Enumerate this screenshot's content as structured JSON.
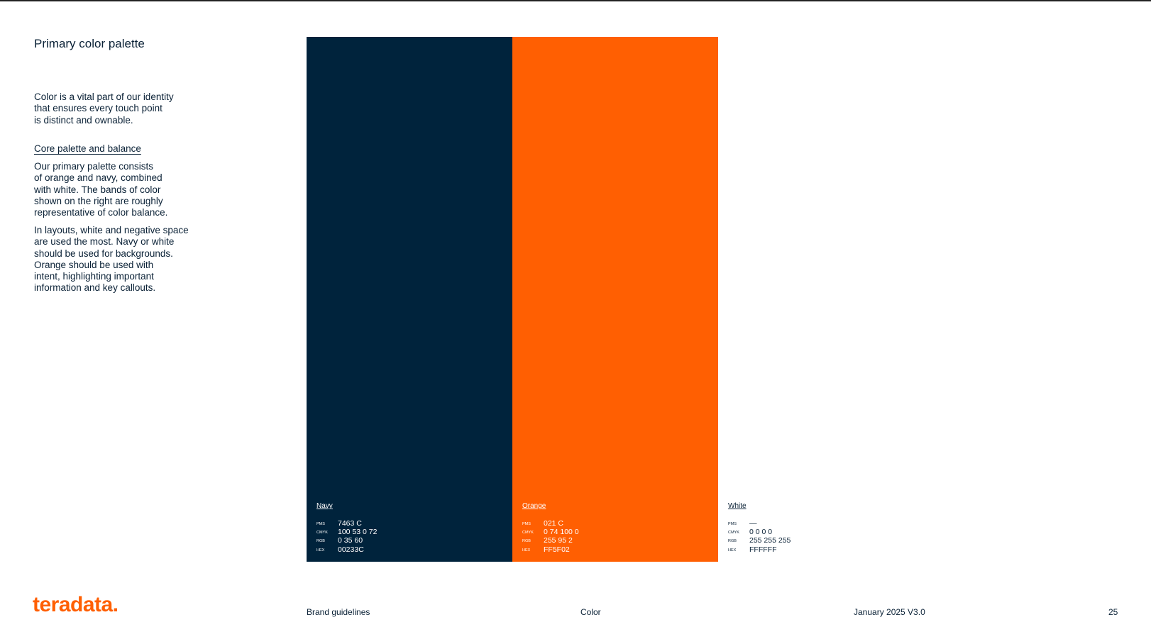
{
  "title": "Primary color palette",
  "intro": [
    "Color is a vital part of our identity",
    "that ensures every touch point",
    "is distinct and ownable."
  ],
  "subheading": "Core palette and balance",
  "paragraphs": [
    [
      "Our primary palette consists",
      "of orange and navy, combined",
      "with white. The bands of color",
      "shown on the right are roughly",
      "representative of color balance."
    ],
    [
      "In layouts, white and negative space",
      "are used the most. Navy or white",
      "should be used for backgrounds.",
      "Orange should be used with",
      "intent, highlighting important",
      "information and key callouts."
    ]
  ],
  "spec_labels": [
    "PMS",
    "CMYK",
    "RGB",
    "HEX"
  ],
  "swatches": [
    {
      "name": "Navy",
      "specs": [
        "7463 C",
        "100 53 0 72",
        "0 35 60",
        "00233C"
      ]
    },
    {
      "name": "Orange",
      "specs": [
        "021 C",
        "0 74 100 0",
        "255 95 2",
        "FF5F02"
      ]
    },
    {
      "name": "White",
      "specs": [
        "—",
        "0 0 0 0",
        "255 255 255",
        "FFFFFF"
      ]
    }
  ],
  "footer": {
    "logo": "teradata.",
    "document": "Brand guidelines",
    "section": "Color",
    "date": "January 2025 V3.0",
    "page": "25"
  }
}
